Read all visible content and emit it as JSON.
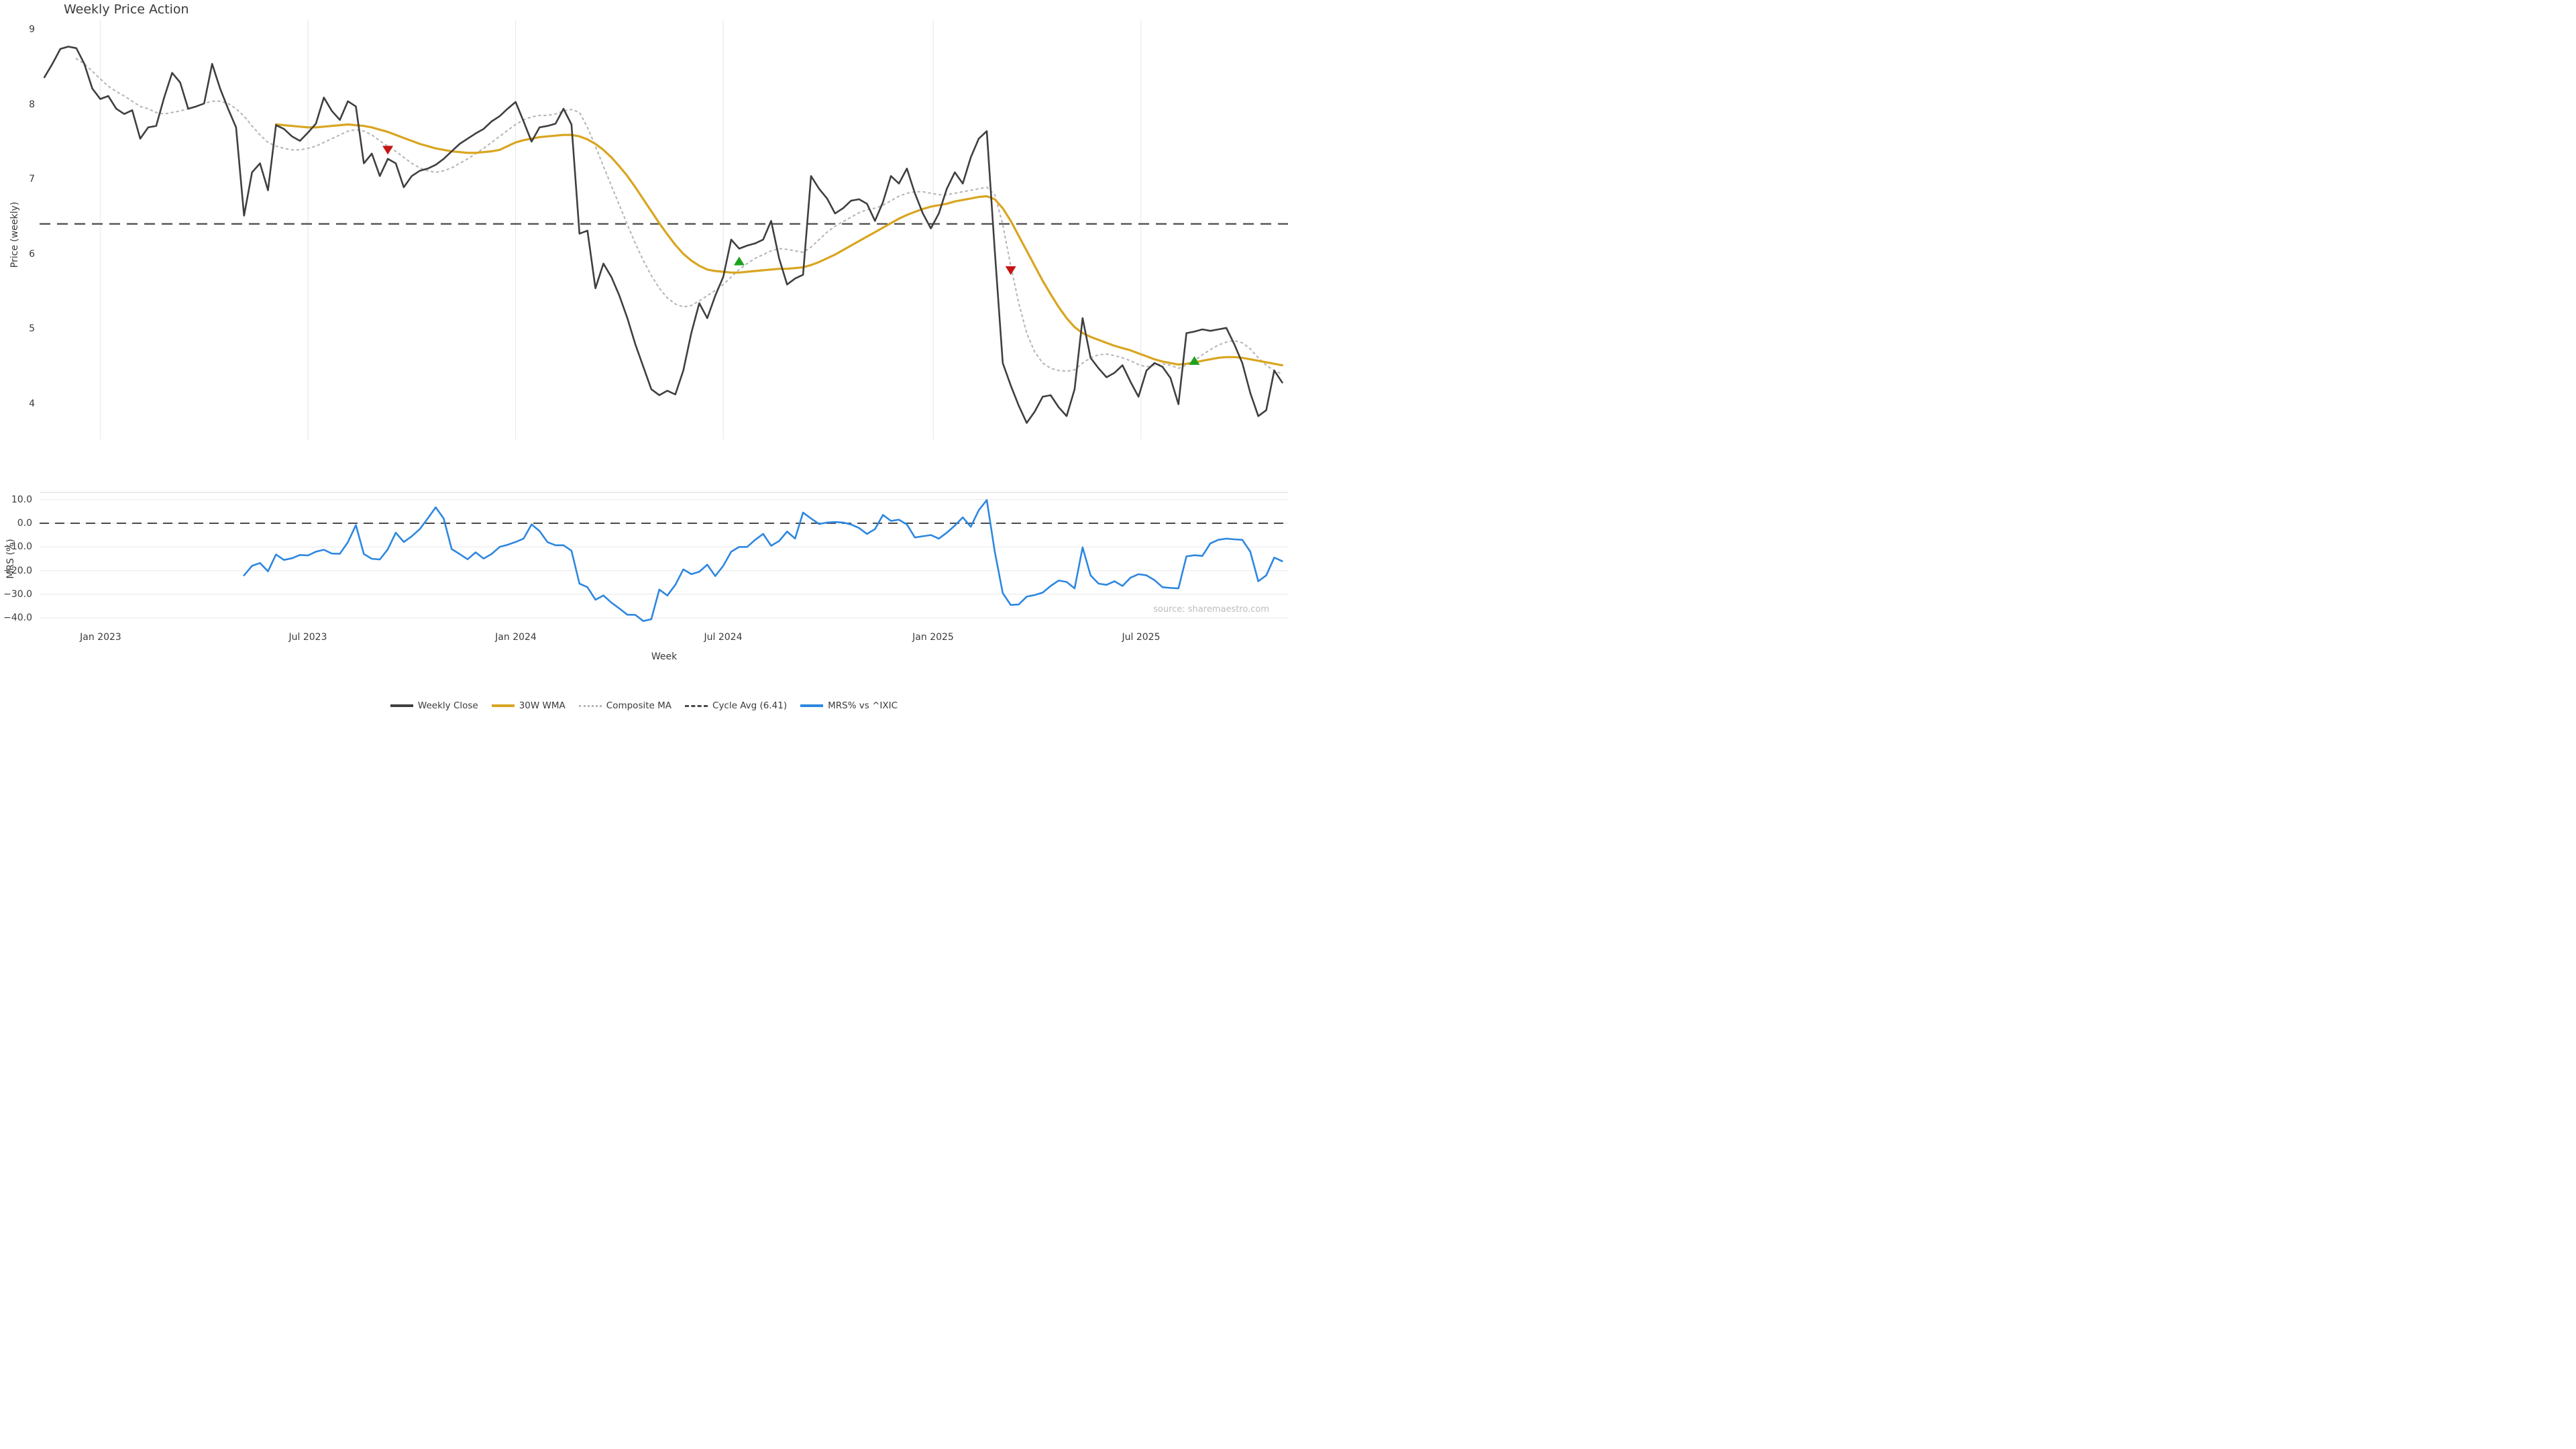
{
  "title": "Weekly Price Action",
  "xlabel": "Week",
  "source": "source: sharemaestro.com",
  "price_panel": {
    "ylabel": "Price (weekly)",
    "yticks": [
      {
        "label": "9",
        "value": 9
      },
      {
        "label": "8",
        "value": 8
      },
      {
        "label": "7",
        "value": 7
      },
      {
        "label": "6",
        "value": 6
      },
      {
        "label": "5",
        "value": 5
      },
      {
        "label": "4",
        "value": 4
      }
    ],
    "cycle_avg": 6.41
  },
  "mrs_panel": {
    "ylabel": "MRS (%)",
    "yticks": [
      {
        "label": "10.0",
        "value": 10
      },
      {
        "label": "0.0",
        "value": 0
      },
      {
        "label": "−10.0",
        "value": -10
      },
      {
        "label": "−20.0",
        "value": -20
      },
      {
        "label": "−30.0",
        "value": -30
      },
      {
        "label": "−40.0",
        "value": -40
      }
    ],
    "zero_line": 0
  },
  "xticks": [
    {
      "label": "Jan 2023",
      "week": 7
    },
    {
      "label": "Jul 2023",
      "week": 33
    },
    {
      "label": "Jan 2024",
      "week": 59
    },
    {
      "label": "Jul 2024",
      "week": 85
    },
    {
      "label": "Jan 2025",
      "week": 111.3
    },
    {
      "label": "Jul 2025",
      "week": 137.3
    }
  ],
  "legend": [
    {
      "label": "Weekly Close",
      "swatch": "solid-dark"
    },
    {
      "label": "30W WMA",
      "swatch": "solid-gold"
    },
    {
      "label": "Composite MA",
      "swatch": "dotted-gray"
    },
    {
      "label": "Cycle Avg (6.41)",
      "swatch": "dashed-dark"
    },
    {
      "label": "MRS% vs ^IXIC",
      "swatch": "solid-blue"
    }
  ],
  "colors": {
    "close": "#3f3f3f",
    "wma": "#d9a520",
    "composite": "#b8b8b8",
    "cycle": "#4a4a4a",
    "mrs": "#2d87e0",
    "buy": "#1ea21e",
    "sell": "#c41414",
    "grid": "#ececec",
    "vgrid": "#e9e9ef",
    "panel_border": "#e0e0e0"
  },
  "chart_data": [
    {
      "type": "line",
      "title": "Weekly Price Action",
      "xlabel": "Week",
      "ylabel": "Price (weekly)",
      "x_start_date": "2022-11-14",
      "x_interval": "weekly",
      "n_points": 156,
      "ylim": [
        3.5,
        9.2
      ],
      "yticks": [
        9,
        8,
        7,
        6,
        5,
        4
      ],
      "grid": "vertical-only",
      "cycle_avg_line": 6.41,
      "series": [
        {
          "name": "Weekly Close",
          "style": "solid",
          "values": [
            8.37,
            8.55,
            8.75,
            8.78,
            8.76,
            8.55,
            8.22,
            8.08,
            8.12,
            7.95,
            7.88,
            7.93,
            7.55,
            7.7,
            7.72,
            8.1,
            8.43,
            8.3,
            7.95,
            7.98,
            8.02,
            8.55,
            8.22,
            7.95,
            7.7,
            6.52,
            7.1,
            7.22,
            6.86,
            7.73,
            7.68,
            7.58,
            7.52,
            7.63,
            7.75,
            8.1,
            7.92,
            7.8,
            8.05,
            7.98,
            7.22,
            7.35,
            7.05,
            7.28,
            7.22,
            6.9,
            7.05,
            7.12,
            7.15,
            7.2,
            7.28,
            7.38,
            7.48,
            7.55,
            7.62,
            7.68,
            7.78,
            7.85,
            7.95,
            8.04,
            7.78,
            7.51,
            7.7,
            7.72,
            7.75,
            7.95,
            7.74,
            6.28,
            6.32,
            5.55,
            5.88,
            5.7,
            5.45,
            5.15,
            4.8,
            4.5,
            4.2,
            4.12,
            4.18,
            4.13,
            4.45,
            4.95,
            5.35,
            5.15,
            5.45,
            5.7,
            6.2,
            6.08,
            6.12,
            6.15,
            6.2,
            6.45,
            5.95,
            5.6,
            5.68,
            5.73,
            7.05,
            6.88,
            6.75,
            6.55,
            6.62,
            6.72,
            6.74,
            6.68,
            6.45,
            6.7,
            7.05,
            6.95,
            7.15,
            6.82,
            6.55,
            6.35,
            6.55,
            6.88,
            7.1,
            6.95,
            7.3,
            7.55,
            7.65,
            6.05,
            4.55,
            4.25,
            3.98,
            3.75,
            3.9,
            4.1,
            4.12,
            3.96,
            3.84,
            4.2,
            5.15,
            4.62,
            4.48,
            4.36,
            4.42,
            4.52,
            4.3,
            4.1,
            4.45,
            4.55,
            4.5,
            4.35,
            4.0,
            4.95,
            4.97,
            5.0,
            4.98,
            5.0,
            5.02,
            4.8,
            4.55,
            4.15,
            3.84,
            3.92,
            4.45,
            4.29
          ]
        },
        {
          "name": "30W WMA",
          "style": "solid",
          "values": [
            null,
            null,
            null,
            null,
            null,
            null,
            null,
            null,
            null,
            null,
            null,
            null,
            null,
            null,
            null,
            null,
            null,
            null,
            null,
            null,
            null,
            null,
            null,
            null,
            null,
            null,
            null,
            null,
            null,
            7.74,
            7.73,
            7.72,
            7.71,
            7.7,
            7.7,
            7.71,
            7.72,
            7.73,
            7.74,
            7.73,
            7.72,
            7.7,
            7.67,
            7.64,
            7.6,
            7.56,
            7.52,
            7.48,
            7.45,
            7.42,
            7.4,
            7.38,
            7.37,
            7.36,
            7.36,
            7.37,
            7.38,
            7.4,
            7.45,
            7.5,
            7.53,
            7.55,
            7.57,
            7.58,
            7.59,
            7.6,
            7.6,
            7.58,
            7.54,
            7.48,
            7.4,
            7.3,
            7.18,
            7.05,
            6.9,
            6.74,
            6.58,
            6.42,
            6.27,
            6.13,
            6.01,
            5.92,
            5.85,
            5.8,
            5.78,
            5.77,
            5.76,
            5.76,
            5.77,
            5.78,
            5.79,
            5.8,
            5.81,
            5.81,
            5.82,
            5.83,
            5.86,
            5.9,
            5.95,
            6.0,
            6.06,
            6.12,
            6.18,
            6.24,
            6.3,
            6.36,
            6.42,
            6.48,
            6.53,
            6.57,
            6.61,
            6.64,
            6.66,
            6.68,
            6.71,
            6.73,
            6.75,
            6.77,
            6.78,
            6.74,
            6.62,
            6.45,
            6.25,
            6.05,
            5.85,
            5.65,
            5.47,
            5.3,
            5.15,
            5.03,
            4.95,
            4.9,
            4.86,
            4.82,
            4.78,
            4.75,
            4.72,
            4.68,
            4.64,
            4.6,
            4.57,
            4.55,
            4.53,
            4.54,
            4.56,
            4.58,
            4.6,
            4.62,
            4.63,
            4.63,
            4.62,
            4.6,
            4.58,
            4.56,
            4.54,
            4.52
          ]
        },
        {
          "name": "Composite MA",
          "style": "dotted",
          "values": [
            null,
            null,
            null,
            null,
            8.62,
            8.55,
            8.45,
            8.35,
            8.25,
            8.18,
            8.12,
            8.05,
            7.98,
            7.95,
            7.9,
            7.88,
            7.9,
            7.92,
            7.95,
            7.98,
            8.02,
            8.05,
            8.05,
            8.02,
            7.95,
            7.85,
            7.72,
            7.6,
            7.5,
            7.45,
            7.42,
            7.4,
            7.4,
            7.42,
            7.45,
            7.5,
            7.55,
            7.6,
            7.65,
            7.67,
            7.65,
            7.6,
            7.52,
            7.45,
            7.38,
            7.3,
            7.22,
            7.16,
            7.12,
            7.1,
            7.12,
            7.16,
            7.22,
            7.28,
            7.35,
            7.42,
            7.5,
            7.58,
            7.66,
            7.74,
            7.8,
            7.84,
            7.86,
            7.86,
            7.88,
            7.92,
            7.94,
            7.9,
            7.7,
            7.45,
            7.18,
            6.92,
            6.66,
            6.4,
            6.15,
            5.92,
            5.72,
            5.55,
            5.42,
            5.34,
            5.3,
            5.32,
            5.38,
            5.45,
            5.52,
            5.6,
            5.7,
            5.8,
            5.88,
            5.95,
            6.0,
            6.05,
            6.08,
            6.07,
            6.05,
            6.03,
            6.1,
            6.2,
            6.3,
            6.38,
            6.44,
            6.5,
            6.56,
            6.6,
            6.62,
            6.66,
            6.72,
            6.78,
            6.82,
            6.84,
            6.84,
            6.82,
            6.8,
            6.8,
            6.82,
            6.84,
            6.86,
            6.88,
            6.9,
            6.8,
            6.4,
            5.85,
            5.35,
            4.95,
            4.7,
            4.55,
            4.48,
            4.45,
            4.44,
            4.46,
            4.55,
            4.62,
            4.66,
            4.67,
            4.65,
            4.62,
            4.58,
            4.53,
            4.5,
            4.52,
            4.54,
            4.52,
            4.48,
            4.52,
            4.58,
            4.66,
            4.73,
            4.79,
            4.83,
            4.85,
            4.82,
            4.74,
            4.62,
            4.52,
            4.45,
            4.4
          ]
        }
      ],
      "signals": {
        "sell": [
          {
            "week": 43,
            "value": 7.4
          },
          {
            "week": 121,
            "value": 5.79
          }
        ],
        "buy": [
          {
            "week": 87,
            "value": 5.91
          },
          {
            "week": 144,
            "value": 4.58
          }
        ]
      }
    },
    {
      "type": "line",
      "ylabel": "MRS (%)",
      "x_start_date": "2022-11-14",
      "x_interval": "weekly",
      "ylim": [
        -45,
        13
      ],
      "yticks": [
        10,
        0,
        -10,
        -20,
        -30,
        -40
      ],
      "grid": "horizontal-only",
      "zero_dashed_line": 0,
      "series": [
        {
          "name": "MRS% vs ^IXIC",
          "style": "solid",
          "values": [
            null,
            null,
            null,
            null,
            null,
            null,
            null,
            null,
            null,
            null,
            null,
            null,
            null,
            null,
            null,
            null,
            null,
            null,
            null,
            null,
            null,
            null,
            null,
            null,
            null,
            -22.0,
            -18.0,
            -16.8,
            -20.3,
            -13.2,
            -15.5,
            -14.8,
            -13.4,
            -13.6,
            -12.0,
            -11.2,
            -12.8,
            -12.9,
            -8.0,
            -0.8,
            -13.0,
            -15.0,
            -15.3,
            -11.0,
            -4.0,
            -7.9,
            -5.5,
            -2.5,
            2.0,
            6.7,
            2.0,
            -10.9,
            -13.0,
            -15.2,
            -12.3,
            -14.9,
            -13.0,
            -10.0,
            -9.1,
            -7.9,
            -6.5,
            -0.5,
            -3.3,
            -8.0,
            -9.3,
            -9.3,
            -11.6,
            -25.5,
            -27.0,
            -32.3,
            -30.5,
            -33.5,
            -36.0,
            -38.6,
            -38.7,
            -41.3,
            -40.5,
            -28.0,
            -30.5,
            -26.0,
            -19.5,
            -21.5,
            -20.5,
            -17.5,
            -22.3,
            -18.0,
            -12.0,
            -10.0,
            -10.0,
            -7.0,
            -4.5,
            -9.5,
            -7.5,
            -3.5,
            -6.5,
            4.5,
            2.0,
            -0.3,
            0.3,
            0.5,
            0.3,
            -0.5,
            -2.0,
            -4.5,
            -2.5,
            3.5,
            1.0,
            1.5,
            -0.5,
            -6.0,
            -5.5,
            -5.0,
            -6.5,
            -4.0,
            -1.0,
            2.5,
            -1.5,
            5.5,
            9.8,
            -12.0,
            -29.5,
            -34.5,
            -34.3,
            -31.0,
            -30.3,
            -29.3,
            -26.5,
            -24.2,
            -24.8,
            -27.5,
            -10.2,
            -22.0,
            -25.5,
            -26.0,
            -24.5,
            -26.5,
            -23.0,
            -21.5,
            -22.0,
            -24.0,
            -27.0,
            -27.3,
            -27.5,
            -14.0,
            -13.5,
            -13.8,
            -8.5,
            -7.0,
            -6.5,
            -6.8,
            -7.0,
            -12.0,
            -24.5,
            -22.0,
            -14.5,
            -16.0
          ]
        }
      ]
    }
  ]
}
